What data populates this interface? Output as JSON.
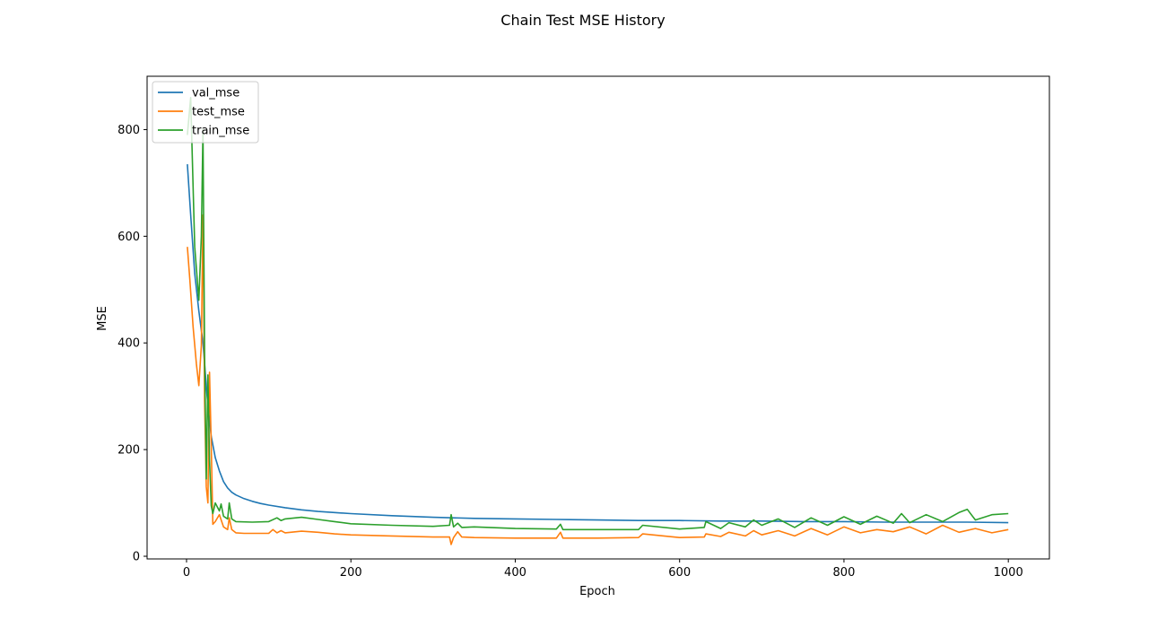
{
  "chart_data": {
    "type": "line",
    "title": "Chain Test MSE History",
    "xlabel": "Epoch",
    "ylabel": "MSE",
    "xlim": [
      -48,
      1050
    ],
    "ylim": [
      -5,
      900
    ],
    "xticks": [
      0,
      200,
      400,
      600,
      800,
      1000
    ],
    "yticks": [
      0,
      200,
      400,
      600,
      800
    ],
    "grid": false,
    "legend_position": "upper-left",
    "series": [
      {
        "name": "val_mse",
        "color": "#1f77b4",
        "x": [
          1,
          5,
          10,
          15,
          20,
          25,
          30,
          35,
          40,
          45,
          50,
          55,
          60,
          70,
          80,
          90,
          100,
          120,
          140,
          160,
          180,
          200,
          250,
          300,
          350,
          400,
          450,
          500,
          550,
          600,
          650,
          700,
          750,
          800,
          850,
          900,
          950,
          1000
        ],
        "y": [
          735,
          640,
          530,
          460,
          400,
          300,
          225,
          185,
          160,
          140,
          128,
          120,
          115,
          108,
          103,
          99,
          96,
          91,
          87,
          84,
          82,
          80,
          76,
          73,
          71,
          70,
          69,
          68,
          67,
          67,
          66,
          66,
          65,
          65,
          64,
          64,
          64,
          63
        ]
      },
      {
        "name": "test_mse",
        "color": "#ff7f0e",
        "x": [
          1,
          4,
          8,
          12,
          15,
          18,
          20,
          22,
          24,
          26,
          28,
          30,
          32,
          35,
          40,
          45,
          50,
          52,
          55,
          60,
          70,
          80,
          100,
          105,
          110,
          115,
          120,
          140,
          160,
          180,
          200,
          250,
          300,
          320,
          322,
          325,
          330,
          335,
          350,
          400,
          450,
          455,
          458,
          500,
          550,
          555,
          600,
          630,
          632,
          650,
          660,
          680,
          690,
          700,
          720,
          740,
          760,
          780,
          800,
          820,
          840,
          860,
          880,
          900,
          920,
          940,
          960,
          980,
          1000
        ],
        "y": [
          580,
          520,
          430,
          360,
          320,
          395,
          640,
          290,
          130,
          100,
          345,
          210,
          60,
          65,
          78,
          55,
          50,
          72,
          50,
          44,
          43,
          43,
          43,
          50,
          44,
          48,
          44,
          47,
          45,
          42,
          40,
          38,
          36,
          36,
          22,
          35,
          46,
          36,
          35,
          34,
          34,
          45,
          34,
          34,
          35,
          42,
          35,
          36,
          42,
          37,
          45,
          38,
          48,
          40,
          48,
          38,
          52,
          40,
          55,
          44,
          50,
          46,
          55,
          42,
          58,
          45,
          52,
          44,
          50
        ]
      },
      {
        "name": "train_mse",
        "color": "#2ca02c",
        "x": [
          1,
          5,
          10,
          15,
          18,
          20,
          22,
          24,
          26,
          28,
          30,
          32,
          35,
          40,
          42,
          45,
          50,
          52,
          55,
          60,
          80,
          100,
          110,
          115,
          120,
          140,
          160,
          180,
          200,
          250,
          300,
          320,
          322,
          325,
          330,
          335,
          350,
          400,
          450,
          455,
          458,
          500,
          550,
          555,
          600,
          630,
          632,
          650,
          660,
          680,
          690,
          700,
          720,
          740,
          760,
          780,
          800,
          820,
          840,
          860,
          870,
          880,
          900,
          920,
          940,
          950,
          960,
          980,
          1000
        ],
        "y": [
          790,
          860,
          580,
          480,
          600,
          800,
          380,
          145,
          340,
          180,
          95,
          80,
          100,
          85,
          98,
          75,
          70,
          100,
          70,
          65,
          64,
          65,
          72,
          67,
          70,
          73,
          69,
          65,
          61,
          58,
          56,
          58,
          78,
          55,
          62,
          54,
          55,
          52,
          51,
          60,
          50,
          50,
          50,
          58,
          51,
          54,
          65,
          52,
          63,
          55,
          68,
          58,
          70,
          54,
          72,
          58,
          74,
          60,
          75,
          62,
          80,
          63,
          78,
          65,
          82,
          88,
          68,
          78,
          80
        ]
      }
    ]
  }
}
